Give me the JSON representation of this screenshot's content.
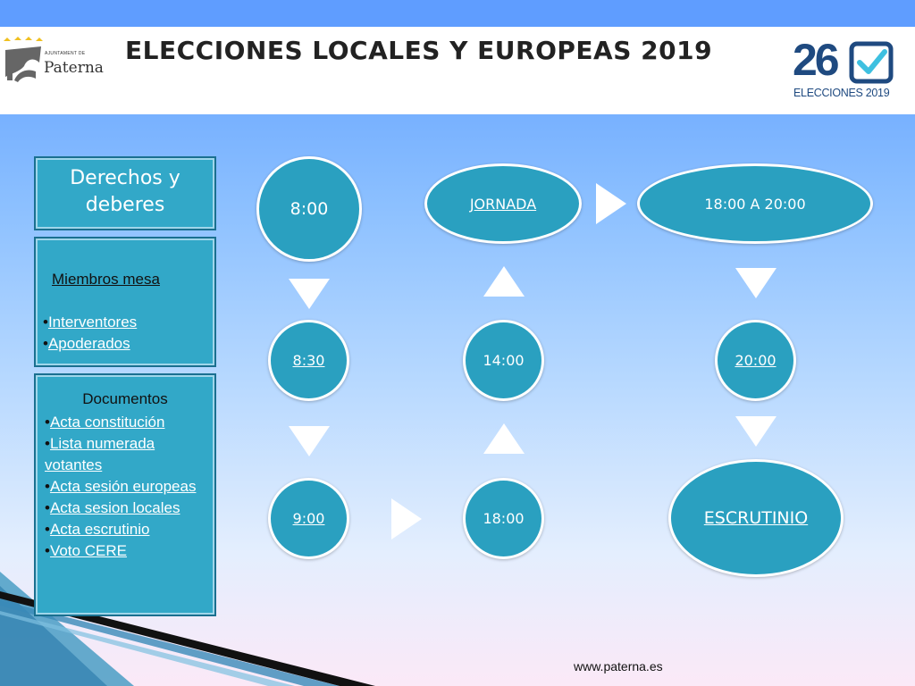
{
  "header": {
    "title": "ELECCIONES LOCALES Y EUROPEAS 2019",
    "logo_left": {
      "name": "Paterna",
      "small_text": "AJUNTAMENT DE"
    },
    "logo_right": {
      "number": "26",
      "caption": "ELECCIONES 2019"
    }
  },
  "sidebar": {
    "rights_box": {
      "label": "Derechos y deberes"
    },
    "members_box": {
      "heading": "Miembros mesa",
      "items": [
        "Interventores",
        "Apoderados"
      ]
    },
    "documents_box": {
      "heading": "Documentos",
      "items": [
        "Acta constitución",
        "Lista numerada votantes",
        "Acta sesión europeas",
        "Acta sesion locales",
        "Acta escrutinio",
        "Voto CERE"
      ]
    }
  },
  "flow": {
    "nodes": {
      "t0800": "8:00",
      "t0830": "8:30",
      "t0900": "9:00",
      "t1800": "18:00",
      "t1400": "14:00",
      "jornada": "JORNADA",
      "t1800_2000": "18:00 A 20:00",
      "t2000": "20:00",
      "escrutinio": "ESCRUTINIO"
    }
  },
  "footer": {
    "url": "www.paterna.es"
  },
  "colors": {
    "node_fill": "#2aa0c0",
    "box_fill": "#32a8c8",
    "top_bar": "#5f9dff",
    "logo_blue": "#1f4a80"
  }
}
